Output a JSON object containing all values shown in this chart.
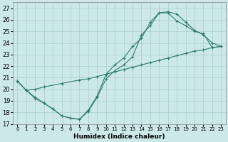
{
  "xlabel": "Humidex (Indice chaleur)",
  "background_color": "#cce8e8",
  "grid_color": "#aacccc",
  "line_color": "#2e7d6e",
  "xlim": [
    -0.5,
    23.5
  ],
  "ylim": [
    17,
    27.5
  ],
  "xticks": [
    0,
    1,
    2,
    3,
    4,
    5,
    6,
    7,
    8,
    9,
    10,
    11,
    12,
    13,
    14,
    15,
    16,
    17,
    18,
    19,
    20,
    21,
    22,
    23
  ],
  "yticks": [
    17,
    18,
    19,
    20,
    21,
    22,
    23,
    24,
    25,
    26,
    27
  ],
  "line1_x": [
    0,
    1,
    2,
    3,
    4,
    5,
    6,
    7,
    8,
    9,
    10,
    11,
    12,
    13,
    14,
    15,
    16,
    17,
    18,
    19,
    20,
    21,
    22,
    23
  ],
  "line1_y": [
    20.7,
    19.9,
    19.2,
    18.8,
    18.3,
    17.7,
    17.5,
    17.4,
    18.1,
    19.3,
    20.9,
    21.6,
    22.1,
    22.8,
    24.7,
    25.5,
    26.6,
    26.6,
    25.9,
    25.5,
    25.0,
    24.8,
    23.6,
    23.7
  ],
  "line2_x": [
    0,
    1,
    2,
    3,
    4,
    5,
    6,
    7,
    8,
    9,
    10,
    11,
    12,
    13,
    14,
    15,
    16,
    17,
    18,
    19,
    20,
    21,
    22,
    23
  ],
  "line2_y": [
    20.7,
    19.9,
    19.3,
    18.8,
    18.3,
    17.7,
    17.5,
    17.4,
    18.2,
    19.4,
    21.3,
    22.1,
    22.7,
    23.7,
    24.4,
    25.8,
    26.6,
    26.7,
    26.5,
    25.8,
    25.1,
    24.7,
    24.0,
    23.7
  ],
  "line3_x": [
    0,
    1,
    2,
    3,
    5,
    7,
    8,
    9,
    10,
    11,
    12,
    13,
    14,
    15,
    16,
    17,
    18,
    19,
    20,
    21,
    22,
    23
  ],
  "line3_y": [
    20.7,
    19.9,
    20.0,
    20.2,
    20.5,
    20.8,
    20.9,
    21.1,
    21.3,
    21.5,
    21.7,
    21.9,
    22.1,
    22.3,
    22.5,
    22.7,
    22.9,
    23.1,
    23.3,
    23.4,
    23.6,
    23.7
  ]
}
